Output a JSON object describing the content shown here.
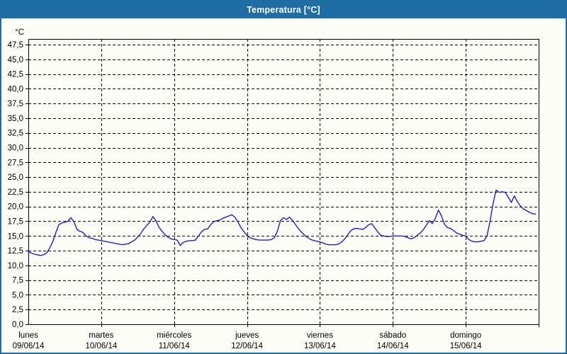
{
  "window": {
    "title": "Temperatura [°C]"
  },
  "colors": {
    "titlebar": "#1e6da4",
    "window_border": "#1e6da4",
    "background": "#fdfdf8",
    "line": "#2020c8",
    "grid": "#000000"
  },
  "chart_data": {
    "type": "line",
    "title": "Temperatura [°C]",
    "unit_label": "°C",
    "ylim": [
      0,
      47.5
    ],
    "ytick_step": 2.5,
    "ytick_labels": [
      "0,0",
      "2,5",
      "5,0",
      "7,5",
      "10,0",
      "12,5",
      "15,0",
      "17,5",
      "20,0",
      "22,5",
      "25,0",
      "27,5",
      "30,0",
      "32,5",
      "35,0",
      "37,5",
      "40,0",
      "42,5",
      "45,0",
      "47,5"
    ],
    "grid": "dashed",
    "legend": "none",
    "days": [
      {
        "name": "lunes",
        "date": "09/06/14"
      },
      {
        "name": "martes",
        "date": "10/06/14"
      },
      {
        "name": "miércoles",
        "date": "11/06/14"
      },
      {
        "name": "jueves",
        "date": "12/06/14"
      },
      {
        "name": "viernes",
        "date": "13/06/14"
      },
      {
        "name": "sábado",
        "date": "14/06/14"
      },
      {
        "name": "domingo",
        "date": "15/06/14"
      }
    ],
    "sample_interval_hours": 1,
    "x_start": "lunes 09/06/14 00:00",
    "series": [
      {
        "name": "Temperatura",
        "values": [
          12.3,
          12.1,
          11.9,
          11.8,
          11.7,
          11.8,
          12.1,
          12.9,
          14.0,
          15.5,
          16.9,
          17.2,
          17.3,
          17.5,
          18.1,
          17.4,
          16.1,
          15.8,
          15.6,
          15.0,
          14.7,
          14.6,
          14.4,
          14.3,
          14.2,
          14.1,
          14.0,
          13.9,
          13.8,
          13.7,
          13.6,
          13.5,
          13.6,
          13.7,
          14.0,
          14.3,
          14.8,
          15.4,
          16.2,
          16.8,
          17.3,
          18.3,
          17.6,
          16.5,
          15.8,
          15.2,
          14.8,
          14.5,
          14.4,
          14.3,
          13.4,
          13.9,
          14.1,
          14.2,
          14.2,
          14.3,
          15.0,
          15.7,
          16.1,
          16.2,
          16.9,
          17.4,
          17.6,
          17.7,
          18.0,
          18.2,
          18.4,
          18.6,
          18.2,
          17.4,
          16.4,
          15.7,
          15.1,
          14.7,
          14.5,
          14.4,
          14.3,
          14.3,
          14.3,
          14.3,
          14.4,
          14.7,
          15.8,
          17.6,
          18.1,
          17.8,
          18.2,
          17.6,
          16.9,
          16.2,
          15.6,
          15.1,
          14.7,
          14.4,
          14.2,
          14.1,
          14.0,
          13.8,
          13.6,
          13.5,
          13.5,
          13.5,
          13.6,
          13.9,
          14.4,
          15.1,
          15.8,
          16.2,
          16.3,
          16.2,
          16.1,
          16.4,
          16.9,
          17.1,
          16.4,
          15.7,
          15.1,
          15.0,
          14.9,
          14.9,
          15.0,
          15.0,
          15.0,
          15.0,
          14.9,
          14.7,
          14.5,
          14.7,
          15.1,
          15.5,
          16.0,
          16.8,
          17.6,
          17.1,
          18.0,
          19.4,
          18.4,
          17.0,
          16.4,
          16.3,
          15.9,
          15.5,
          15.3,
          15.1,
          15.0,
          14.4,
          14.1,
          14.0,
          14.0,
          14.1,
          14.2,
          15.0,
          17.5,
          20.5,
          22.8,
          22.4,
          22.5,
          22.4,
          21.6,
          20.7,
          21.8,
          20.8,
          20.1,
          19.6,
          19.3,
          19.0,
          18.8,
          18.7
        ]
      }
    ]
  }
}
